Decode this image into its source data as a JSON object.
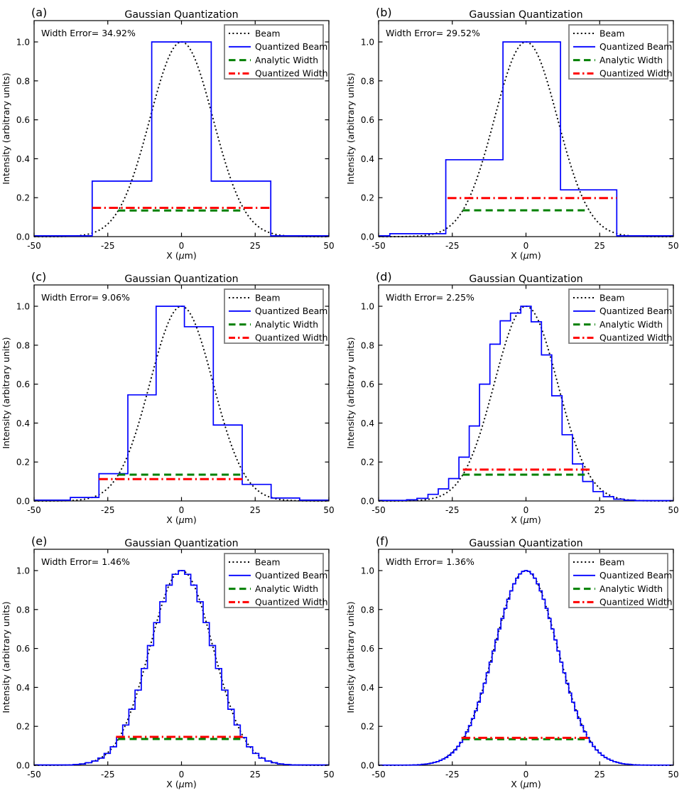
{
  "figure": {
    "title": "Gaussian Quantization",
    "xlabel": {
      "prefix": "X (",
      "mu": "μ",
      "suffix": "m)"
    },
    "ylabel": "Intensity (arbitrary units)",
    "xticks": [
      -50,
      -25,
      0,
      25,
      50
    ],
    "xtick_labels": [
      "-50",
      "-25",
      "0",
      "25",
      "50"
    ],
    "yticks": [
      0,
      0.2,
      0.4,
      0.6,
      0.8,
      1.0
    ],
    "ytick_labels": [
      "0.0",
      "0.2",
      "0.4",
      "0.6",
      "0.8",
      "1.0"
    ],
    "xlim": [
      -50,
      50
    ],
    "ylim": [
      0,
      1.109
    ],
    "grid": false,
    "legend_position": "upper right",
    "legend": [
      {
        "label": "Beam",
        "color": "#000000",
        "style": "dotted"
      },
      {
        "label": "Quantized Beam",
        "color": "#0000ff",
        "style": "solid"
      },
      {
        "label": "Analytic Width",
        "color": "#008000",
        "style": "dashed"
      },
      {
        "label": "Quantized Width",
        "color": "#ff0000",
        "style": "dashdot"
      }
    ],
    "colors": {
      "beam": "#000000",
      "quantized_beam": "#0000ff",
      "analytic_width": "#008000",
      "quantized_width": "#ff0000",
      "legend_border": "#808080",
      "axes": "#000000"
    }
  },
  "chart_data": [
    {
      "type": "line",
      "panel_label": "(a)",
      "title": "Gaussian Quantization",
      "width_error_text": "Width  Error= 34.92%",
      "width_error_pct": 34.92,
      "beam": {
        "shape": "gaussian",
        "center_um": 0,
        "e2_radius_um": 21.4,
        "peak": 1.0
      },
      "quantized_beam": {
        "steps": [
          [
            -50,
            -30.3,
            0.004
          ],
          [
            -30.3,
            -10.1,
            0.285
          ],
          [
            -10.1,
            10.1,
            1.0
          ],
          [
            10.1,
            30.3,
            0.285
          ],
          [
            30.3,
            50,
            0.004
          ]
        ]
      },
      "analytic_width": {
        "y": 0.134,
        "x0": -21.5,
        "x1": 21.5
      },
      "quantized_width": {
        "y": 0.148,
        "x0": -30.3,
        "x1": 30.3
      }
    },
    {
      "type": "line",
      "panel_label": "(b)",
      "title": "Gaussian Quantization",
      "width_error_text": "Width  Error= 29.52%",
      "width_error_pct": 29.52,
      "beam": {
        "shape": "gaussian",
        "center_um": 0,
        "e2_radius_um": 21.4,
        "peak": 1.0
      },
      "quantized_beam": {
        "steps": [
          [
            -50,
            -46.2,
            0.004
          ],
          [
            -46.2,
            -27.2,
            0.015
          ],
          [
            -27.2,
            -7.8,
            0.395
          ],
          [
            -7.8,
            11.7,
            1.0
          ],
          [
            11.7,
            30.8,
            0.24
          ],
          [
            30.8,
            50,
            0.004
          ]
        ]
      },
      "analytic_width": {
        "y": 0.135,
        "x0": -21.5,
        "x1": 21.5
      },
      "quantized_width": {
        "y": 0.198,
        "x0": -26.6,
        "x1": 30.8
      }
    },
    {
      "type": "line",
      "panel_label": "(c)",
      "title": "Gaussian Quantization",
      "width_error_text": "Width  Error= 9.06%",
      "width_error_pct": 9.06,
      "beam": {
        "shape": "gaussian",
        "center_um": 0,
        "e2_radius_um": 21.4,
        "peak": 1.0
      },
      "quantized_beam": {
        "steps": [
          [
            -50,
            -37.7,
            0.004
          ],
          [
            -37.7,
            -28,
            0.018
          ],
          [
            -28,
            -18.2,
            0.14
          ],
          [
            -18.2,
            -8.6,
            0.545
          ],
          [
            -8.6,
            1,
            1.0
          ],
          [
            1,
            10.8,
            0.895
          ],
          [
            10.8,
            20.6,
            0.39
          ],
          [
            20.6,
            30.4,
            0.085
          ],
          [
            30.4,
            40.1,
            0.015
          ],
          [
            40.1,
            50,
            0.004
          ]
        ]
      },
      "analytic_width": {
        "y": 0.135,
        "x0": -21.5,
        "x1": 21.5
      },
      "quantized_width": {
        "y": 0.112,
        "x0": -28,
        "x1": 20.8
      }
    },
    {
      "type": "line",
      "panel_label": "(d)",
      "title": "Gaussian Quantization",
      "width_error_text": "Width  Error= 2.25%",
      "width_error_pct": 2.25,
      "beam": {
        "shape": "gaussian",
        "center_um": 0,
        "e2_radius_um": 21.4,
        "peak": 1.0
      },
      "quantized_beam": {
        "steps": [
          [
            -50,
            -40.5,
            0.003
          ],
          [
            -40.5,
            -37,
            0.006
          ],
          [
            -37,
            -33.25,
            0.013
          ],
          [
            -33.25,
            -29.75,
            0.034
          ],
          [
            -29.75,
            -26.25,
            0.062
          ],
          [
            -26.25,
            -22.75,
            0.115
          ],
          [
            -22.75,
            -19.25,
            0.225
          ],
          [
            -19.25,
            -15.75,
            0.385
          ],
          [
            -15.75,
            -12.25,
            0.6
          ],
          [
            -12.25,
            -8.75,
            0.805
          ],
          [
            -8.75,
            -5.25,
            0.925
          ],
          [
            -5.25,
            -1.75,
            0.965
          ],
          [
            -1.75,
            1.75,
            1.0
          ],
          [
            1.75,
            5.25,
            0.92
          ],
          [
            5.25,
            8.75,
            0.75
          ],
          [
            8.75,
            12.25,
            0.54
          ],
          [
            12.25,
            15.75,
            0.34
          ],
          [
            15.75,
            19.25,
            0.19
          ],
          [
            19.25,
            22.75,
            0.1
          ],
          [
            22.75,
            26.25,
            0.048
          ],
          [
            26.25,
            29.75,
            0.022
          ],
          [
            29.75,
            33.25,
            0.009
          ],
          [
            33.25,
            37,
            0.004
          ],
          [
            37,
            50,
            0.002
          ]
        ]
      },
      "analytic_width": {
        "y": 0.135,
        "x0": -21.5,
        "x1": 21.5
      },
      "quantized_width": {
        "y": 0.161,
        "x0": -21.4,
        "x1": 21.9
      }
    },
    {
      "type": "line",
      "panel_label": "(e)",
      "title": "Gaussian Quantization",
      "width_error_text": "Width  Error= 1.46%",
      "width_error_pct": 1.46,
      "beam": {
        "shape": "gaussian",
        "center_um": 0,
        "e2_radius_um": 21.4,
        "peak": 1.0
      },
      "quantized_beam": {
        "steps": [
          [
            -50,
            -36.75,
            0.002
          ],
          [
            -36.75,
            -34.65,
            0.004
          ],
          [
            -34.65,
            -32.55,
            0.007
          ],
          [
            -32.55,
            -30.45,
            0.013
          ],
          [
            -30.45,
            -28.35,
            0.022
          ],
          [
            -28.35,
            -26.25,
            0.037
          ],
          [
            -26.25,
            -24.15,
            0.061
          ],
          [
            -24.15,
            -22.05,
            0.095
          ],
          [
            -22.05,
            -19.95,
            0.143
          ],
          [
            -19.95,
            -17.85,
            0.207
          ],
          [
            -17.85,
            -15.75,
            0.288
          ],
          [
            -15.75,
            -13.65,
            0.386
          ],
          [
            -13.65,
            -11.55,
            0.497
          ],
          [
            -11.55,
            -9.45,
            0.615
          ],
          [
            -9.45,
            -7.35,
            0.733
          ],
          [
            -7.35,
            -5.25,
            0.84
          ],
          [
            -5.25,
            -3.15,
            0.925
          ],
          [
            -3.15,
            -1.05,
            0.981
          ],
          [
            -1.05,
            1.05,
            1.0
          ],
          [
            1.05,
            3.15,
            0.981
          ],
          [
            3.15,
            5.25,
            0.925
          ],
          [
            5.25,
            7.35,
            0.84
          ],
          [
            7.35,
            9.45,
            0.733
          ],
          [
            9.45,
            11.55,
            0.615
          ],
          [
            11.55,
            13.65,
            0.497
          ],
          [
            13.65,
            15.75,
            0.386
          ],
          [
            15.75,
            17.85,
            0.288
          ],
          [
            17.85,
            19.95,
            0.207
          ],
          [
            19.95,
            22.05,
            0.143
          ],
          [
            22.05,
            24.15,
            0.095
          ],
          [
            24.15,
            26.25,
            0.061
          ],
          [
            26.25,
            28.35,
            0.037
          ],
          [
            28.35,
            30.45,
            0.022
          ],
          [
            30.45,
            32.55,
            0.013
          ],
          [
            32.55,
            34.65,
            0.007
          ],
          [
            34.65,
            36.75,
            0.004
          ],
          [
            36.75,
            50,
            0.002
          ]
        ]
      },
      "analytic_width": {
        "y": 0.135,
        "x0": -21.5,
        "x1": 21.5
      },
      "quantized_width": {
        "y": 0.146,
        "x0": -22.2,
        "x1": 21.7
      }
    },
    {
      "type": "line",
      "panel_label": "(f)",
      "title": "Gaussian Quantization",
      "width_error_text": "Width  Error= 1.36%",
      "width_error_pct": 1.36,
      "beam": {
        "shape": "gaussian",
        "center_um": 0,
        "e2_radius_um": 21.4,
        "peak": 1.0
      },
      "quantized_beam": {
        "steps": [
          [
            -50,
            -38.5,
            0.001
          ],
          [
            -38.5,
            -37.5,
            0.002
          ],
          [
            -37.5,
            -36.5,
            0.002
          ],
          [
            -36.5,
            -35.5,
            0.003
          ],
          [
            -35.5,
            -34.5,
            0.005
          ],
          [
            -34.5,
            -33.5,
            0.006
          ],
          [
            -33.5,
            -32.5,
            0.008
          ],
          [
            -32.5,
            -31.5,
            0.011
          ],
          [
            -31.5,
            -30.5,
            0.015
          ],
          [
            -30.5,
            -29.5,
            0.019
          ],
          [
            -29.5,
            -28.5,
            0.025
          ],
          [
            -28.5,
            -27.5,
            0.032
          ],
          [
            -27.5,
            -26.5,
            0.04
          ],
          [
            -26.5,
            -25.5,
            0.051
          ],
          [
            -25.5,
            -24.5,
            0.064
          ],
          [
            -24.5,
            -23.5,
            0.079
          ],
          [
            -23.5,
            -22.5,
            0.097
          ],
          [
            -22.5,
            -21.5,
            0.118
          ],
          [
            -21.5,
            -20.5,
            0.143
          ],
          [
            -20.5,
            -19.5,
            0.172
          ],
          [
            -19.5,
            -18.5,
            0.204
          ],
          [
            -18.5,
            -17.5,
            0.24
          ],
          [
            -17.5,
            -16.5,
            0.28
          ],
          [
            -16.5,
            -15.5,
            0.324
          ],
          [
            -15.5,
            -14.5,
            0.371
          ],
          [
            -14.5,
            -13.5,
            0.421
          ],
          [
            -13.5,
            -12.5,
            0.475
          ],
          [
            -12.5,
            -11.5,
            0.53
          ],
          [
            -11.5,
            -10.5,
            0.587
          ],
          [
            -10.5,
            -9.5,
            0.644
          ],
          [
            -9.5,
            -8.5,
            0.7
          ],
          [
            -8.5,
            -7.5,
            0.754
          ],
          [
            -7.5,
            -6.5,
            0.806
          ],
          [
            -6.5,
            -5.5,
            0.853
          ],
          [
            -5.5,
            -4.5,
            0.896
          ],
          [
            -4.5,
            -3.5,
            0.932
          ],
          [
            -3.5,
            -2.5,
            0.961
          ],
          [
            -2.5,
            -1.5,
            0.983
          ],
          [
            -1.5,
            -0.5,
            0.996
          ],
          [
            -0.5,
            0.5,
            1.0
          ],
          [
            0.5,
            1.5,
            0.996
          ],
          [
            1.5,
            2.5,
            0.983
          ],
          [
            2.5,
            3.5,
            0.961
          ],
          [
            3.5,
            4.5,
            0.932
          ],
          [
            4.5,
            5.5,
            0.896
          ],
          [
            5.5,
            6.5,
            0.853
          ],
          [
            6.5,
            7.5,
            0.806
          ],
          [
            7.5,
            8.5,
            0.754
          ],
          [
            8.5,
            9.5,
            0.7
          ],
          [
            9.5,
            10.5,
            0.644
          ],
          [
            10.5,
            11.5,
            0.587
          ],
          [
            11.5,
            12.5,
            0.53
          ],
          [
            12.5,
            13.5,
            0.475
          ],
          [
            13.5,
            14.5,
            0.421
          ],
          [
            14.5,
            15.5,
            0.371
          ],
          [
            15.5,
            16.5,
            0.324
          ],
          [
            16.5,
            17.5,
            0.28
          ],
          [
            17.5,
            18.5,
            0.24
          ],
          [
            18.5,
            19.5,
            0.204
          ],
          [
            19.5,
            20.5,
            0.172
          ],
          [
            20.5,
            21.5,
            0.143
          ],
          [
            21.5,
            22.5,
            0.118
          ],
          [
            22.5,
            23.5,
            0.097
          ],
          [
            23.5,
            24.5,
            0.079
          ],
          [
            24.5,
            25.5,
            0.064
          ],
          [
            25.5,
            26.5,
            0.051
          ],
          [
            26.5,
            27.5,
            0.04
          ],
          [
            27.5,
            28.5,
            0.032
          ],
          [
            28.5,
            29.5,
            0.025
          ],
          [
            29.5,
            30.5,
            0.019
          ],
          [
            30.5,
            31.5,
            0.015
          ],
          [
            31.5,
            32.5,
            0.011
          ],
          [
            32.5,
            33.5,
            0.008
          ],
          [
            33.5,
            34.5,
            0.006
          ],
          [
            34.5,
            35.5,
            0.005
          ],
          [
            35.5,
            36.5,
            0.003
          ],
          [
            36.5,
            37.5,
            0.002
          ],
          [
            37.5,
            38.5,
            0.002
          ],
          [
            38.5,
            50,
            0.001
          ]
        ]
      },
      "analytic_width": {
        "y": 0.134,
        "x0": -21.5,
        "x1": 21.5
      },
      "quantized_width": {
        "y": 0.141,
        "x0": -21.9,
        "x1": 21.6
      }
    }
  ]
}
